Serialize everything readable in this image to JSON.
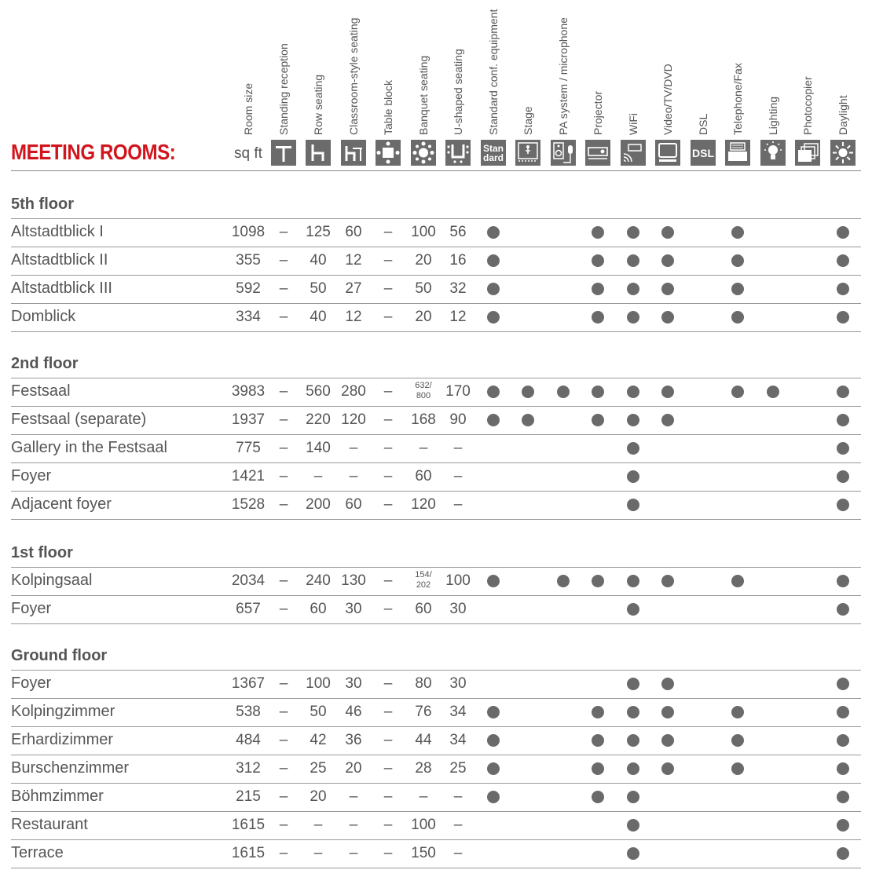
{
  "title": "MEETING ROOMS:",
  "unit_label": "sq ft",
  "columns": [
    {
      "label": "Room size",
      "icon": "none"
    },
    {
      "label": "Standing reception",
      "icon": "standing-reception-icon"
    },
    {
      "label": "Row seating",
      "icon": "row-seating-icon"
    },
    {
      "label": "Classroom-style seating",
      "icon": "classroom-seating-icon"
    },
    {
      "label": "Table block",
      "icon": "table-block-icon"
    },
    {
      "label": "Banquet seating",
      "icon": "banquet-seating-icon"
    },
    {
      "label": "U-shaped seating",
      "icon": "u-shaped-seating-icon"
    },
    {
      "label": "Standard conf. equipment",
      "icon": "standard-equipment-icon",
      "icon_text": "Stan dard"
    },
    {
      "label": "Stage",
      "icon": "stage-icon"
    },
    {
      "label": "PA system / microphone",
      "icon": "pa-system-icon"
    },
    {
      "label": "Projector",
      "icon": "projector-icon"
    },
    {
      "label": "WiFi",
      "icon": "wifi-icon"
    },
    {
      "label": "Video/TV/DVD",
      "icon": "video-tv-icon"
    },
    {
      "label": "DSL",
      "icon": "dsl-icon",
      "icon_text": "DSL"
    },
    {
      "label": "Telephone/Fax",
      "icon": "telephone-fax-icon"
    },
    {
      "label": "Lighting",
      "icon": "lighting-icon"
    },
    {
      "label": "Photocopier",
      "icon": "photocopier-icon"
    },
    {
      "label": "Daylight",
      "icon": "daylight-icon"
    }
  ],
  "sections": [
    {
      "name": "5th floor",
      "rows": [
        {
          "name": "Altstadtblick I",
          "v": [
            "1098",
            "–",
            "125",
            "60",
            "–",
            "100",
            "56"
          ],
          "f": [
            1,
            0,
            0,
            1,
            1,
            1,
            0,
            1,
            0,
            0,
            1
          ]
        },
        {
          "name": "Altstadtblick II",
          "v": [
            "355",
            "–",
            "40",
            "12",
            "–",
            "20",
            "16"
          ],
          "f": [
            1,
            0,
            0,
            1,
            1,
            1,
            0,
            1,
            0,
            0,
            1
          ]
        },
        {
          "name": "Altstadtblick III",
          "v": [
            "592",
            "–",
            "50",
            "27",
            "–",
            "50",
            "32"
          ],
          "f": [
            1,
            0,
            0,
            1,
            1,
            1,
            0,
            1,
            0,
            0,
            1
          ]
        },
        {
          "name": "Domblick",
          "v": [
            "334",
            "–",
            "40",
            "12",
            "–",
            "20",
            "12"
          ],
          "f": [
            1,
            0,
            0,
            1,
            1,
            1,
            0,
            1,
            0,
            0,
            1
          ]
        }
      ]
    },
    {
      "name": "2nd floor",
      "rows": [
        {
          "name": "Festsaal",
          "v": [
            "3983",
            "–",
            "560",
            "280",
            "–",
            {
              "top": "632/",
              "bottom": "800"
            },
            "170"
          ],
          "f": [
            1,
            1,
            1,
            1,
            1,
            1,
            0,
            1,
            1,
            0,
            1
          ]
        },
        {
          "name": "Festsaal (separate)",
          "v": [
            "1937",
            "–",
            "220",
            "120",
            "–",
            "168",
            "90"
          ],
          "f": [
            1,
            1,
            0,
            1,
            1,
            1,
            0,
            0,
            0,
            0,
            1
          ]
        },
        {
          "name": "Gallery in the Festsaal",
          "v": [
            "775",
            "–",
            "140",
            "–",
            "–",
            "–",
            "–"
          ],
          "f": [
            0,
            0,
            0,
            0,
            1,
            0,
            0,
            0,
            0,
            0,
            1
          ]
        },
        {
          "name": "Foyer",
          "v": [
            "1421",
            "–",
            "–",
            "–",
            "–",
            "60",
            "–"
          ],
          "f": [
            0,
            0,
            0,
            0,
            1,
            0,
            0,
            0,
            0,
            0,
            1
          ]
        },
        {
          "name": "Adjacent foyer",
          "v": [
            "1528",
            "–",
            "200",
            "60",
            "–",
            "120",
            "–"
          ],
          "f": [
            0,
            0,
            0,
            0,
            1,
            0,
            0,
            0,
            0,
            0,
            1
          ]
        }
      ]
    },
    {
      "name": "1st floor",
      "rows": [
        {
          "name": "Kolpingsaal",
          "v": [
            "2034",
            "–",
            "240",
            "130",
            "–",
            {
              "top": "154/",
              "bottom": "202"
            },
            "100"
          ],
          "f": [
            1,
            0,
            1,
            1,
            1,
            1,
            0,
            1,
            0,
            0,
            1
          ]
        },
        {
          "name": "Foyer",
          "v": [
            "657",
            "–",
            "60",
            "30",
            "–",
            "60",
            "30"
          ],
          "f": [
            0,
            0,
            0,
            0,
            1,
            0,
            0,
            0,
            0,
            0,
            1
          ]
        }
      ]
    },
    {
      "name": "Ground floor",
      "rows": [
        {
          "name": "Foyer",
          "v": [
            "1367",
            "–",
            "100",
            "30",
            "–",
            "80",
            "30"
          ],
          "f": [
            0,
            0,
            0,
            0,
            1,
            1,
            0,
            0,
            0,
            0,
            1
          ]
        },
        {
          "name": "Kolpingzimmer",
          "v": [
            "538",
            "–",
            "50",
            "46",
            "–",
            "76",
            "34"
          ],
          "f": [
            1,
            0,
            0,
            1,
            1,
            1,
            0,
            1,
            0,
            0,
            1
          ]
        },
        {
          "name": "Erhardizimmer",
          "v": [
            "484",
            "–",
            "42",
            "36",
            "–",
            "44",
            "34"
          ],
          "f": [
            1,
            0,
            0,
            1,
            1,
            1,
            0,
            1,
            0,
            0,
            1
          ]
        },
        {
          "name": "Burschenzimmer",
          "v": [
            "312",
            "–",
            "25",
            "20",
            "–",
            "28",
            "25"
          ],
          "f": [
            1,
            0,
            0,
            1,
            1,
            1,
            0,
            1,
            0,
            0,
            1
          ]
        },
        {
          "name": "Böhmzimmer",
          "v": [
            "215",
            "–",
            "20",
            "–",
            "–",
            "–",
            "–"
          ],
          "f": [
            1,
            0,
            0,
            1,
            1,
            0,
            0,
            0,
            0,
            0,
            1
          ]
        },
        {
          "name": "Restaurant",
          "v": [
            "1615",
            "–",
            "–",
            "–",
            "–",
            "100",
            "–"
          ],
          "f": [
            0,
            0,
            0,
            0,
            1,
            0,
            0,
            0,
            0,
            0,
            1
          ]
        },
        {
          "name": "Terrace",
          "v": [
            "1615",
            "–",
            "–",
            "–",
            "–",
            "150",
            "–"
          ],
          "f": [
            0,
            0,
            0,
            0,
            1,
            0,
            0,
            0,
            0,
            0,
            1
          ]
        }
      ]
    }
  ]
}
